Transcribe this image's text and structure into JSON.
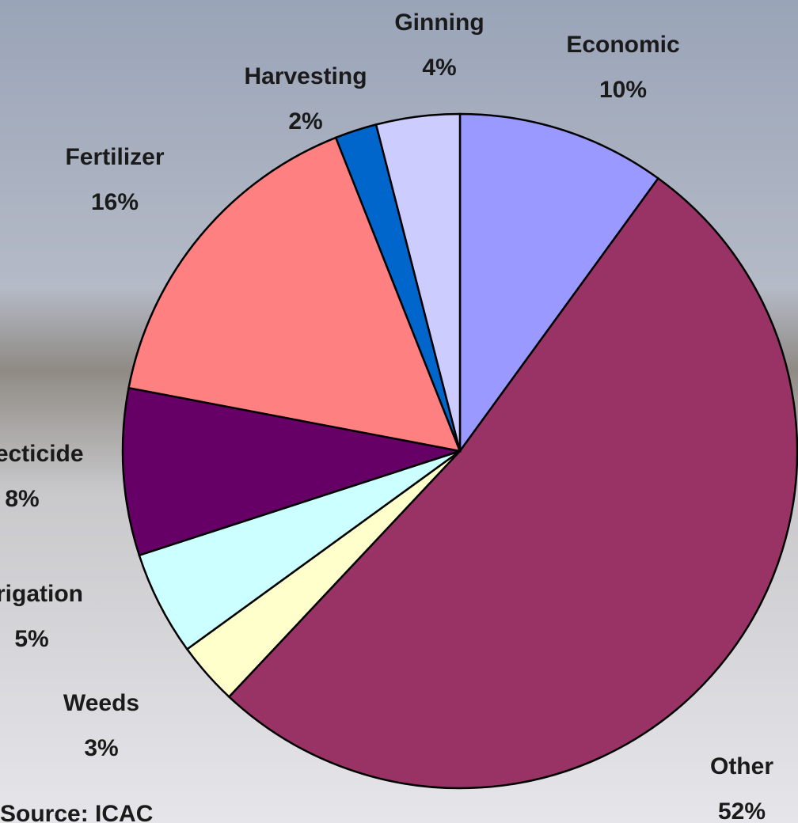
{
  "chart_data": {
    "type": "pie",
    "categories": [
      "Economic",
      "Other",
      "Weeds",
      "Irrigation",
      "Insecticide",
      "Fertilizer",
      "Harvesting",
      "Ginning"
    ],
    "values": [
      10,
      52,
      3,
      5,
      8,
      16,
      2,
      4
    ],
    "value_labels": [
      "10%",
      "52%",
      "3%",
      "5%",
      "8%",
      "16%",
      "2%",
      "4%"
    ],
    "colors": [
      "#9999ff",
      "#993366",
      "#ffffcc",
      "#ccffff",
      "#660066",
      "#ff8080",
      "#0066cc",
      "#ccccff"
    ],
    "source": "Source: ICAC"
  }
}
